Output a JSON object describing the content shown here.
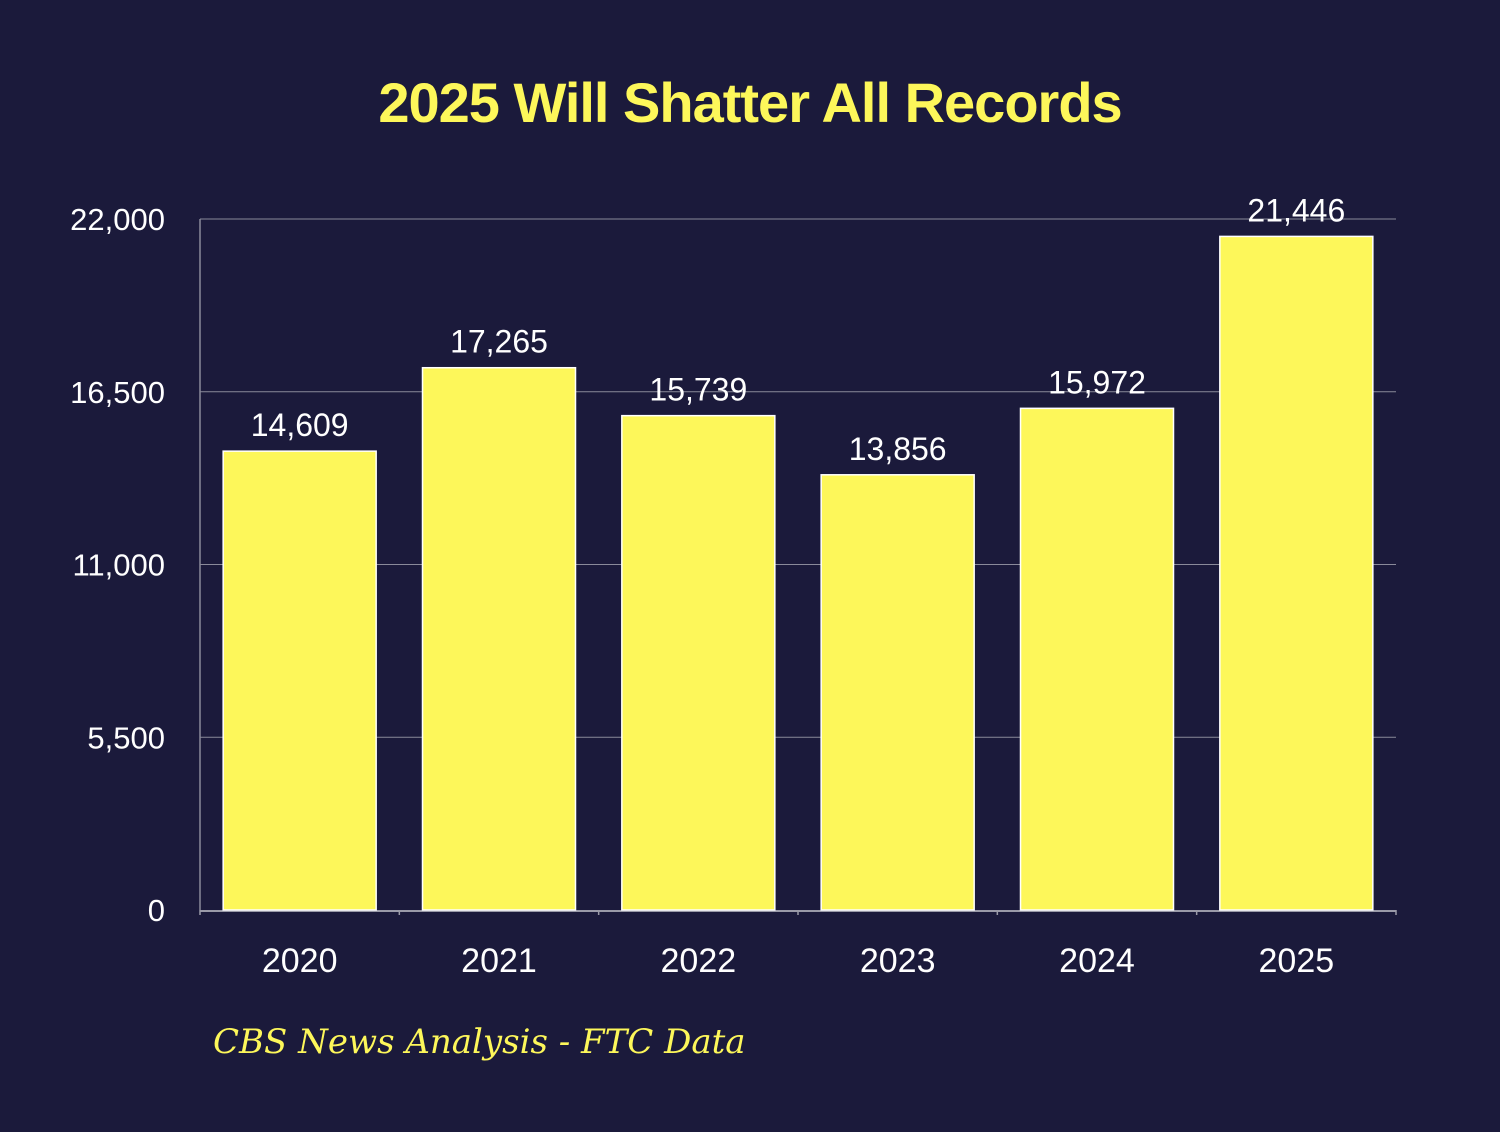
{
  "chart_data": {
    "type": "bar",
    "title": "2025 Will Shatter All Records",
    "categories": [
      "2020",
      "2021",
      "2022",
      "2023",
      "2024",
      "2025"
    ],
    "values": [
      14609,
      17265,
      15739,
      13856,
      15972,
      21446
    ],
    "data_labels": [
      "14,609",
      "17,265",
      "15,739",
      "13,856",
      "15,972",
      "21,446"
    ],
    "xlabel": "",
    "ylabel": "",
    "ylim": [
      0,
      22000
    ],
    "yticks": [
      0,
      5500,
      11000,
      16500,
      22000
    ],
    "ytick_labels": [
      "0",
      "5,500",
      "11,000",
      "16,500",
      "22,000"
    ],
    "grid": true,
    "legend": "none",
    "source": "CBS News Analysis - FTC Data",
    "colors": {
      "background": "#1b1a3b",
      "bar": "#fdf75a",
      "text": "#ffffff",
      "title": "#fdf75a"
    }
  }
}
